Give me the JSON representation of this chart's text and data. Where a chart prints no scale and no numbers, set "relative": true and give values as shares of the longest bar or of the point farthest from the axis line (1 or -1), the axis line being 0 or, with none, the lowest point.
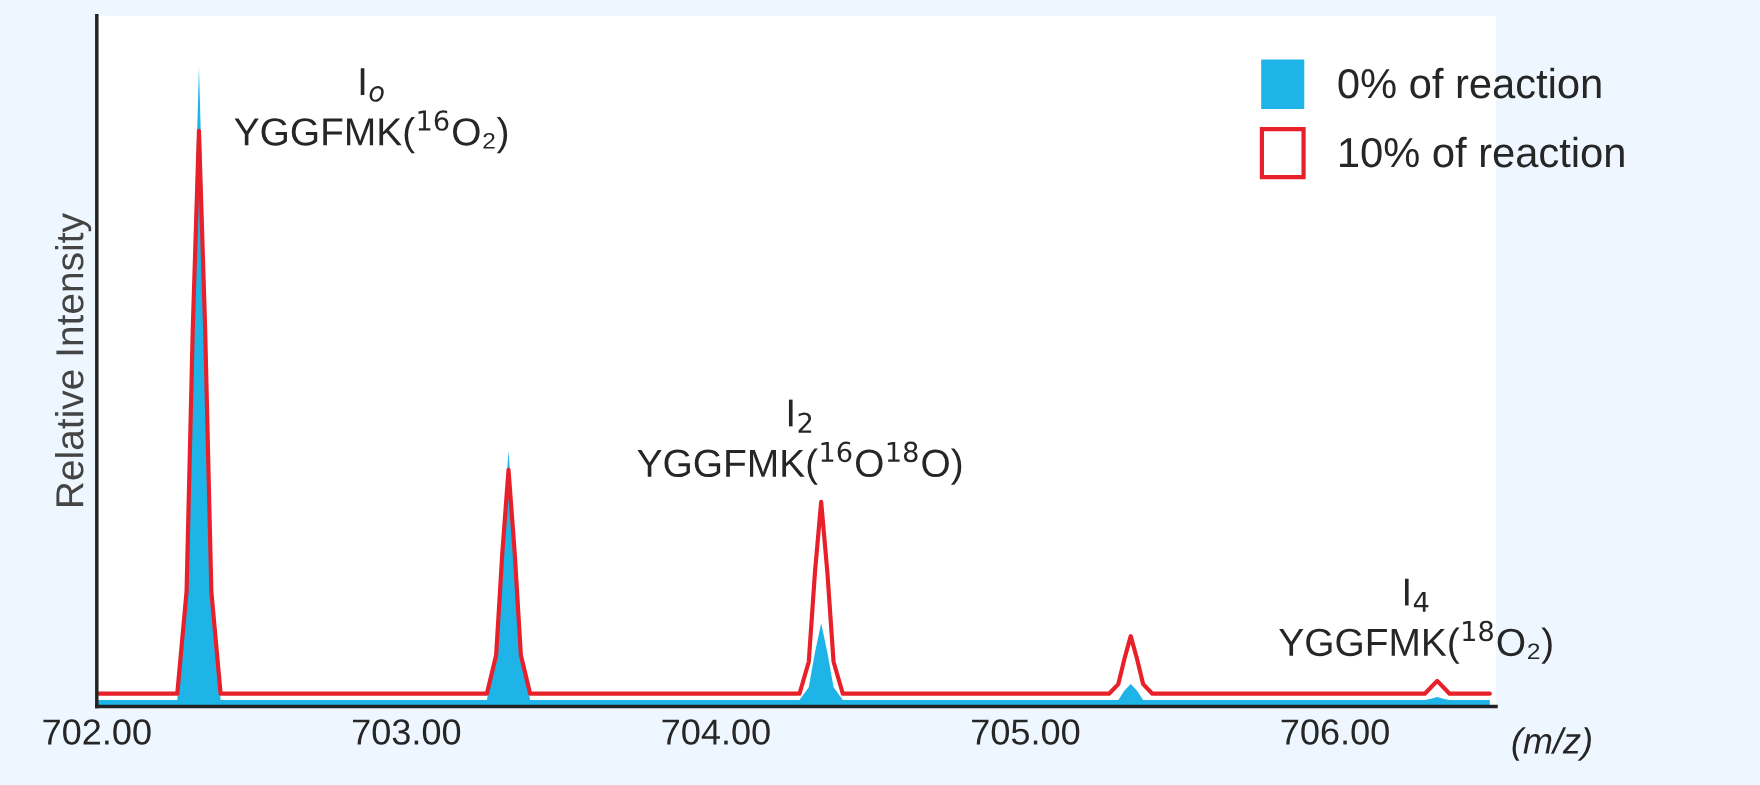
{
  "chart_data": {
    "type": "line",
    "xlabel": "(m/z)",
    "ylabel": "Relative Intensity",
    "relative": true,
    "xlim": [
      702.0,
      706.52
    ],
    "xticks": [
      {
        "value": 702,
        "label": "702.00"
      },
      {
        "value": 703,
        "label": "703.00"
      },
      {
        "value": 704,
        "label": "704.00"
      },
      {
        "value": 705,
        "label": "705.00"
      },
      {
        "value": 706,
        "label": "706.00"
      }
    ],
    "x": [
      702.0,
      702.26,
      702.29,
      702.31,
      702.33,
      702.35,
      702.37,
      702.4,
      702.8,
      703.26,
      703.29,
      703.31,
      703.33,
      703.35,
      703.37,
      703.4,
      703.8,
      704.27,
      704.3,
      704.32,
      704.34,
      704.36,
      704.38,
      704.41,
      704.8,
      705.27,
      705.3,
      705.32,
      705.34,
      705.36,
      705.38,
      705.41,
      705.8,
      706.26,
      706.29,
      706.31,
      706.33,
      706.35,
      706.37,
      706.4,
      706.5
    ],
    "series": [
      {
        "name": "0% of reaction",
        "type": "area",
        "color": "#1eb4e8",
        "values": [
          0.01,
          0.01,
          0.2,
          0.65,
          1,
          0.65,
          0.2,
          0.01,
          0.01,
          0.01,
          0.08,
          0.26,
          0.4,
          0.26,
          0.08,
          0.01,
          0.01,
          0.01,
          0.03,
          0.085,
          0.13,
          0.085,
          0.03,
          0.01,
          0.01,
          0.01,
          0.01,
          0.025,
          0.035,
          0.025,
          0.01,
          0.01,
          0.01,
          0.01,
          0.01,
          0.012,
          0.015,
          0.012,
          0.01,
          0.01,
          0.01
        ]
      },
      {
        "name": "10% of reaction",
        "color": "#e8202a",
        "values": [
          0.02,
          0.02,
          0.18,
          0.59,
          0.9,
          0.59,
          0.18,
          0.02,
          0.02,
          0.02,
          0.08,
          0.24,
          0.37,
          0.24,
          0.08,
          0.02,
          0.02,
          0.02,
          0.07,
          0.21,
          0.32,
          0.21,
          0.07,
          0.02,
          0.02,
          0.02,
          0.035,
          0.075,
          0.11,
          0.075,
          0.035,
          0.02,
          0.02,
          0.02,
          0.02,
          0.03,
          0.04,
          0.03,
          0.02,
          0.02,
          0.02
        ]
      }
    ],
    "annotations": [
      {
        "text": "I$_{o}$\nYGGFMK($^{16}$O₂)",
        "x": 702.33,
        "y": 1
      },
      {
        "text": "I$_{2}$\nYGGFMK($^{16}$O$^{18}$O)",
        "x": 704.34,
        "y": 0.32
      },
      {
        "text": "I$_{4}$\nYGGFMK($^{18}$O₂)",
        "x": 706.33,
        "y": 0.04
      }
    ],
    "legend": "top right",
    "grid": false
  }
}
